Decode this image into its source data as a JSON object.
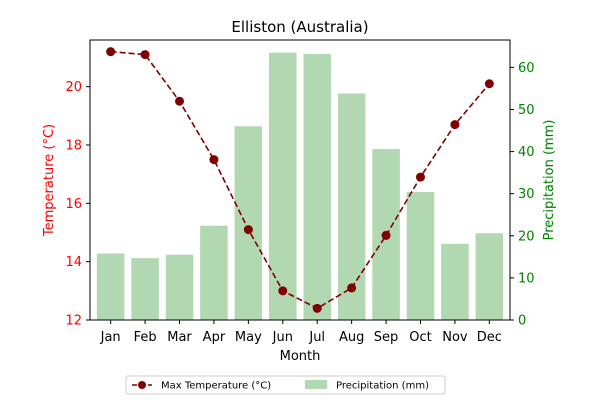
{
  "chart_data": {
    "type": "bar",
    "title": "Elliston (Australia)",
    "xlabel": "Month",
    "ylabel_left": "Temperature (°C)",
    "ylabel_right": "Precipitation (mm)",
    "categories": [
      "Jan",
      "Feb",
      "Mar",
      "Apr",
      "May",
      "Jun",
      "Jul",
      "Aug",
      "Sep",
      "Oct",
      "Nov",
      "Dec"
    ],
    "ylim_left": [
      12,
      21.6
    ],
    "yticks_left": [
      12,
      14,
      16,
      18,
      20
    ],
    "ylim_right": [
      0,
      66.5
    ],
    "yticks_right": [
      0,
      10,
      20,
      30,
      40,
      50,
      60
    ],
    "series": [
      {
        "name": "Max Temperature (°C)",
        "type": "line",
        "axis": "left",
        "color": "#800000",
        "values": [
          21.2,
          21.1,
          19.5,
          17.5,
          15.1,
          13.0,
          12.4,
          13.1,
          14.9,
          16.9,
          18.7,
          20.1
        ]
      },
      {
        "name": "Precipitation (mm)",
        "type": "bar",
        "axis": "right",
        "color": "#b2d8b2",
        "values": [
          15.8,
          14.7,
          15.5,
          22.4,
          46.0,
          63.5,
          63.2,
          53.8,
          40.6,
          30.4,
          18.1,
          20.6
        ]
      }
    ],
    "left_axis_color": "#ff0000",
    "right_axis_color": "#008000",
    "legend": {
      "placement": "bottom"
    }
  }
}
